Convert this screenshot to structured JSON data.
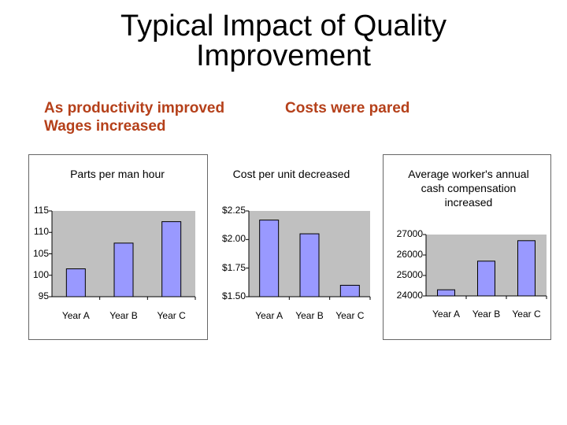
{
  "slide": {
    "title_line1": "Typical Impact of Quality",
    "title_line2": "Improvement",
    "left_subtitle_line1": "As productivity improved",
    "left_subtitle_line2": "Wages increased",
    "right_subtitle": "Costs were pared",
    "accent_color": "#b5401a"
  },
  "chart_data": [
    {
      "type": "bar",
      "title": "Parts per man hour",
      "categories": [
        "Year A",
        "Year B",
        "Year C"
      ],
      "values": [
        101.5,
        107.5,
        112.5
      ],
      "y_ticks": [
        "115",
        "110",
        "105",
        "100",
        "95"
      ],
      "ylim": [
        95,
        115
      ],
      "bar_color": "#9999ff",
      "xlabel": "",
      "ylabel": ""
    },
    {
      "type": "bar",
      "title": "Cost per unit decreased",
      "categories": [
        "Year A",
        "Year B",
        "Year C"
      ],
      "values": [
        2.17,
        2.05,
        1.6
      ],
      "y_ticks": [
        "$2.25",
        "$2.00",
        "$1.75",
        "$1.50"
      ],
      "ylim": [
        1.5,
        2.25
      ],
      "bar_color": "#9999ff",
      "xlabel": "",
      "ylabel": ""
    },
    {
      "type": "bar",
      "title_lines": [
        "Average worker's annual",
        "cash compensation",
        "increased"
      ],
      "categories": [
        "Year A",
        "Year B",
        "Year C"
      ],
      "values": [
        24300,
        25700,
        26700
      ],
      "y_ticks": [
        "27000",
        "26000",
        "25000",
        "24000"
      ],
      "ylim": [
        24000,
        27000
      ],
      "bar_color": "#9999ff",
      "xlabel": "",
      "ylabel": ""
    }
  ]
}
